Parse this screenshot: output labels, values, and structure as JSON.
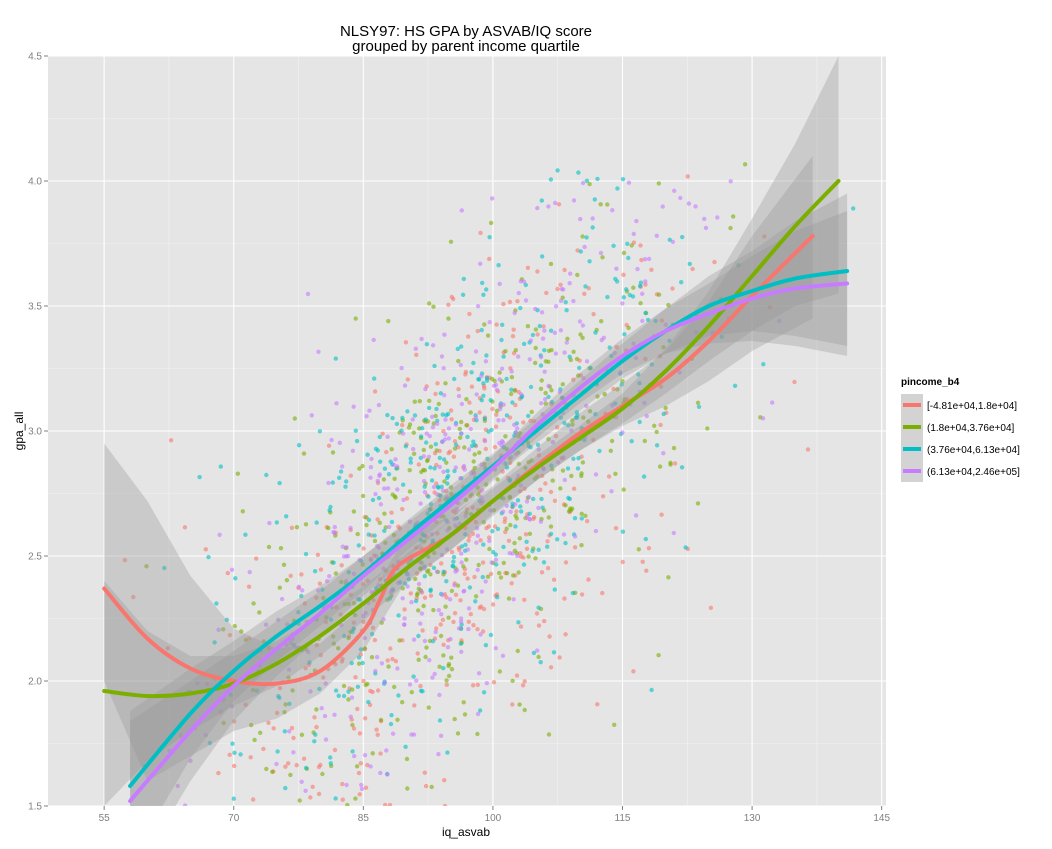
{
  "chart_data": {
    "type": "scatter",
    "title": "NLSY97: HS GPA by ASVAB/IQ score",
    "subtitle": "grouped by parent income quartile",
    "xlabel": "iq_asvab",
    "ylabel": "gpa_all",
    "xlim": [
      48.5,
      145.5
    ],
    "ylim": [
      1.5,
      4.5
    ],
    "x_ticks": [
      55,
      70,
      85,
      100,
      115,
      130,
      145
    ],
    "y_ticks": [
      1.5,
      2.0,
      2.5,
      3.0,
      3.5,
      4.0,
      4.5
    ],
    "x_tick_labels": [
      "55",
      "70",
      "85",
      "100",
      "115",
      "130",
      "145"
    ],
    "y_tick_labels": [
      "1.5",
      "2.0",
      "2.5",
      "3.0",
      "3.5",
      "4.0",
      "4.5"
    ],
    "grid": true,
    "legend": {
      "title": "pincome_b4",
      "placement": "right"
    },
    "series": [
      {
        "name": "[-4.81e+04,1.8e+04]",
        "color": "#F8766D",
        "smooth": [
          [
            55,
            2.37
          ],
          [
            60,
            2.17
          ],
          [
            65,
            2.05
          ],
          [
            70,
            2.0
          ],
          [
            75,
            1.99
          ],
          [
            80,
            2.04
          ],
          [
            85,
            2.2
          ],
          [
            87,
            2.33
          ],
          [
            89,
            2.46
          ],
          [
            95,
            2.58
          ],
          [
            100,
            2.72
          ],
          [
            105,
            2.86
          ],
          [
            110,
            2.99
          ],
          [
            115,
            3.1
          ],
          [
            120,
            3.21
          ],
          [
            125,
            3.36
          ],
          [
            130,
            3.54
          ],
          [
            137,
            3.78
          ]
        ],
        "band": [
          [
            55,
            2.0,
            2.95
          ],
          [
            60,
            1.6,
            2.72
          ],
          [
            65,
            1.7,
            2.42
          ],
          [
            70,
            1.8,
            2.21
          ],
          [
            75,
            1.85,
            2.13
          ],
          [
            80,
            1.95,
            2.15
          ],
          [
            85,
            2.12,
            2.3
          ],
          [
            90,
            2.4,
            2.58
          ],
          [
            95,
            2.52,
            2.66
          ],
          [
            100,
            2.66,
            2.78
          ],
          [
            105,
            2.8,
            2.93
          ],
          [
            110,
            2.92,
            3.07
          ],
          [
            115,
            3.02,
            3.19
          ],
          [
            120,
            3.1,
            3.32
          ],
          [
            125,
            3.2,
            3.52
          ],
          [
            130,
            3.32,
            3.78
          ],
          [
            137,
            3.45,
            4.1
          ]
        ]
      },
      {
        "name": "(1.8e+04,3.76e+04]",
        "color": "#7CAE00",
        "smooth": [
          [
            55,
            1.96
          ],
          [
            60,
            1.94
          ],
          [
            65,
            1.95
          ],
          [
            70,
            1.99
          ],
          [
            75,
            2.07
          ],
          [
            80,
            2.18
          ],
          [
            85,
            2.31
          ],
          [
            90,
            2.45
          ],
          [
            95,
            2.58
          ],
          [
            100,
            2.72
          ],
          [
            105,
            2.85
          ],
          [
            110,
            2.97
          ],
          [
            115,
            3.09
          ],
          [
            120,
            3.24
          ],
          [
            125,
            3.42
          ],
          [
            130,
            3.62
          ],
          [
            135,
            3.82
          ],
          [
            140,
            4.0
          ]
        ],
        "band": [
          [
            55,
            1.5,
            2.4
          ],
          [
            60,
            1.68,
            2.2
          ],
          [
            65,
            1.8,
            2.1
          ],
          [
            70,
            1.9,
            2.1
          ],
          [
            75,
            1.98,
            2.16
          ],
          [
            80,
            2.1,
            2.26
          ],
          [
            85,
            2.24,
            2.38
          ],
          [
            90,
            2.39,
            2.51
          ],
          [
            95,
            2.52,
            2.64
          ],
          [
            100,
            2.67,
            2.77
          ],
          [
            105,
            2.8,
            2.9
          ],
          [
            110,
            2.92,
            3.02
          ],
          [
            115,
            3.03,
            3.15
          ],
          [
            120,
            3.15,
            3.33
          ],
          [
            125,
            3.28,
            3.56
          ],
          [
            130,
            3.4,
            3.85
          ],
          [
            135,
            3.5,
            4.15
          ],
          [
            140,
            3.55,
            4.5
          ]
        ]
      },
      {
        "name": "(3.76e+04,6.13e+04]",
        "color": "#00BFC4",
        "smooth": [
          [
            58,
            1.58
          ],
          [
            65,
            1.87
          ],
          [
            70,
            2.04
          ],
          [
            75,
            2.18
          ],
          [
            80,
            2.3
          ],
          [
            85,
            2.43
          ],
          [
            90,
            2.58
          ],
          [
            95,
            2.72
          ],
          [
            100,
            2.86
          ],
          [
            105,
            3.0
          ],
          [
            110,
            3.14
          ],
          [
            115,
            3.28
          ],
          [
            120,
            3.4
          ],
          [
            125,
            3.5
          ],
          [
            130,
            3.56
          ],
          [
            135,
            3.61
          ],
          [
            141,
            3.64
          ]
        ],
        "band": [
          [
            58,
            1.28,
            1.88
          ],
          [
            65,
            1.69,
            2.05
          ],
          [
            70,
            1.92,
            2.16
          ],
          [
            75,
            2.08,
            2.28
          ],
          [
            80,
            2.22,
            2.38
          ],
          [
            85,
            2.36,
            2.5
          ],
          [
            90,
            2.52,
            2.64
          ],
          [
            95,
            2.66,
            2.78
          ],
          [
            100,
            2.81,
            2.91
          ],
          [
            105,
            2.95,
            3.05
          ],
          [
            110,
            3.08,
            3.2
          ],
          [
            115,
            3.21,
            3.35
          ],
          [
            120,
            3.31,
            3.49
          ],
          [
            125,
            3.38,
            3.62
          ],
          [
            130,
            3.4,
            3.72
          ],
          [
            135,
            3.38,
            3.84
          ],
          [
            141,
            3.34,
            3.95
          ]
        ]
      },
      {
        "name": "(6.13e+04,2.46e+05]",
        "color": "#C77CFF",
        "smooth": [
          [
            58,
            1.52
          ],
          [
            65,
            1.8
          ],
          [
            70,
            1.98
          ],
          [
            75,
            2.13
          ],
          [
            80,
            2.27
          ],
          [
            85,
            2.42
          ],
          [
            90,
            2.56
          ],
          [
            95,
            2.7
          ],
          [
            100,
            2.85
          ],
          [
            105,
            3.02
          ],
          [
            110,
            3.17
          ],
          [
            115,
            3.3
          ],
          [
            120,
            3.4
          ],
          [
            125,
            3.47
          ],
          [
            130,
            3.53
          ],
          [
            135,
            3.57
          ],
          [
            141,
            3.59
          ]
        ],
        "band": [
          [
            58,
            1.2,
            1.84
          ],
          [
            65,
            1.6,
            2.0
          ],
          [
            70,
            1.84,
            2.12
          ],
          [
            75,
            2.02,
            2.24
          ],
          [
            80,
            2.18,
            2.36
          ],
          [
            85,
            2.34,
            2.5
          ],
          [
            90,
            2.49,
            2.63
          ],
          [
            95,
            2.64,
            2.76
          ],
          [
            100,
            2.8,
            2.9
          ],
          [
            105,
            2.97,
            3.07
          ],
          [
            110,
            3.11,
            3.23
          ],
          [
            115,
            3.23,
            3.37
          ],
          [
            120,
            3.31,
            3.49
          ],
          [
            125,
            3.35,
            3.59
          ],
          [
            130,
            3.36,
            3.7
          ],
          [
            135,
            3.34,
            3.8
          ],
          [
            141,
            3.3,
            3.88
          ]
        ]
      }
    ]
  }
}
